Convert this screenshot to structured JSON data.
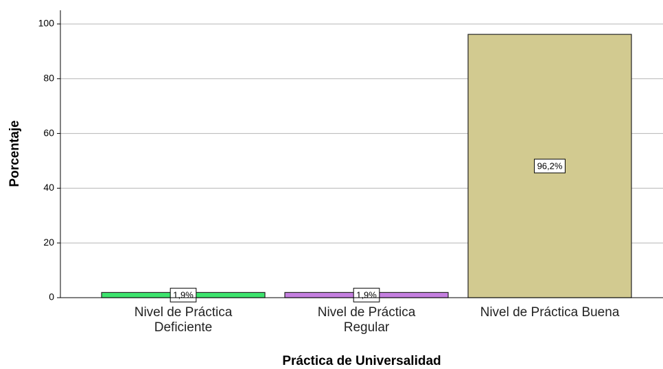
{
  "chart_data": {
    "type": "bar",
    "x_label": "Práctica de Universalidad",
    "y_label": "Porcentaje",
    "categories": [
      "Nivel de Práctica Deficiente",
      "Nivel de Práctica Regular",
      "Nivel de Práctica Buena"
    ],
    "values": [
      1.9,
      1.9,
      96.2
    ],
    "value_labels": [
      "1,9%",
      "1,9%",
      "96,2%"
    ],
    "colors": [
      "#3de36d",
      "#c47fdf",
      "#d2ca90"
    ],
    "ylim": [
      0,
      105
    ],
    "yticks": [
      0,
      20,
      40,
      60,
      80,
      100
    ],
    "grid": true
  }
}
